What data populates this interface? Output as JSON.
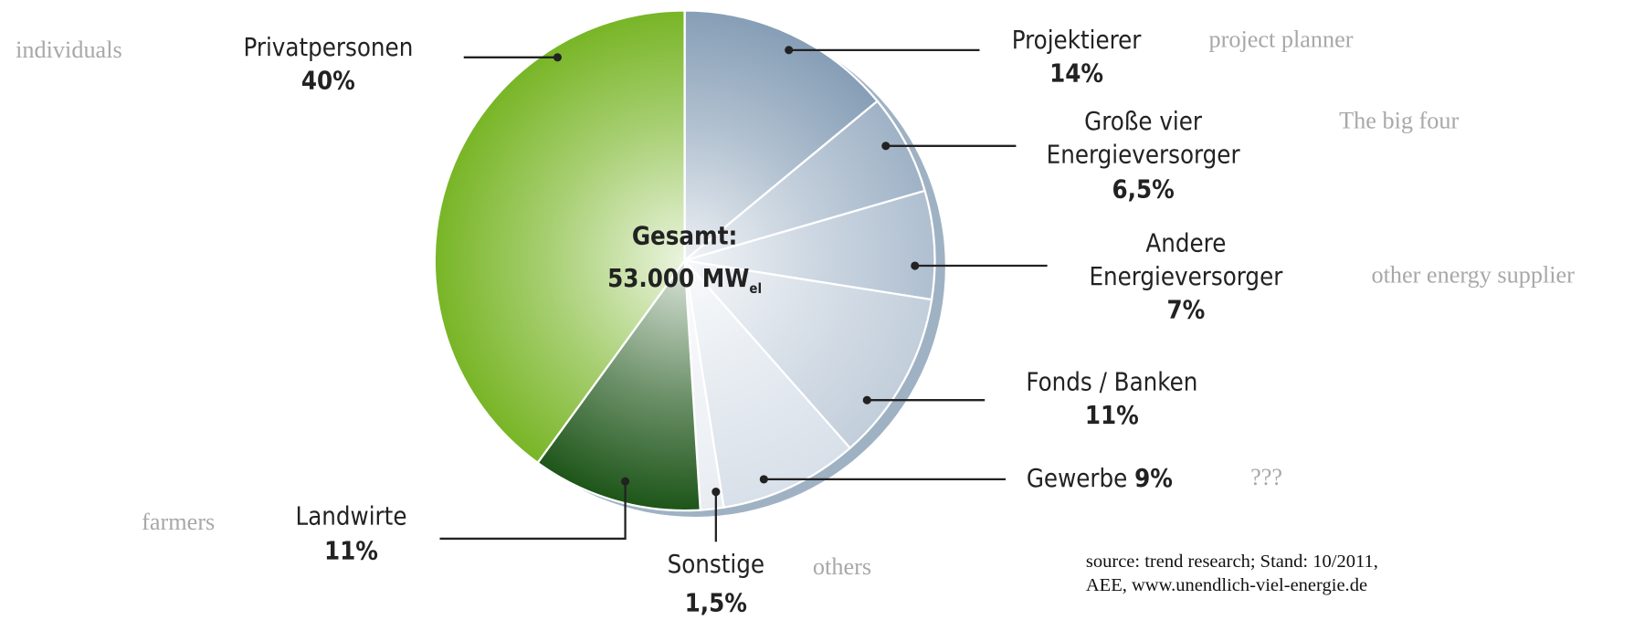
{
  "chart_data": {
    "type": "pie",
    "center_title": "Gesamt:",
    "center_value": "53.000 MW",
    "center_value_sub": "el",
    "categories": [
      [
        "Projektierer"
      ],
      [
        "Große vier",
        "Energieversorger"
      ],
      [
        "Andere",
        "Energieversorger"
      ],
      [
        "Fonds / Banken"
      ],
      [
        "Gewerbe"
      ],
      [
        "Sonstige"
      ],
      [
        "Landwirte"
      ],
      [
        "Privatpersonen"
      ]
    ],
    "values": [
      14,
      6.5,
      7,
      11,
      9,
      1.5,
      11,
      40
    ],
    "value_labels": [
      "14%",
      "6,5%",
      "7%",
      "11%",
      "9%",
      "1,5%",
      "11%",
      "40%"
    ],
    "colors": [
      "#869eb6",
      "#9fb2c6",
      "#afbfd0",
      "#c2cedb",
      "#d8e0e9",
      "#e9edf2",
      "#1d5518",
      "#78b526"
    ],
    "annotations": [
      "project planner",
      "The big four",
      "other energy supplier",
      "",
      "???",
      "others",
      "farmers",
      "individuals"
    ],
    "source": [
      "source: trend research; Stand: 10/2011,",
      "AEE, www.unendlich-viel-energie.de"
    ]
  }
}
